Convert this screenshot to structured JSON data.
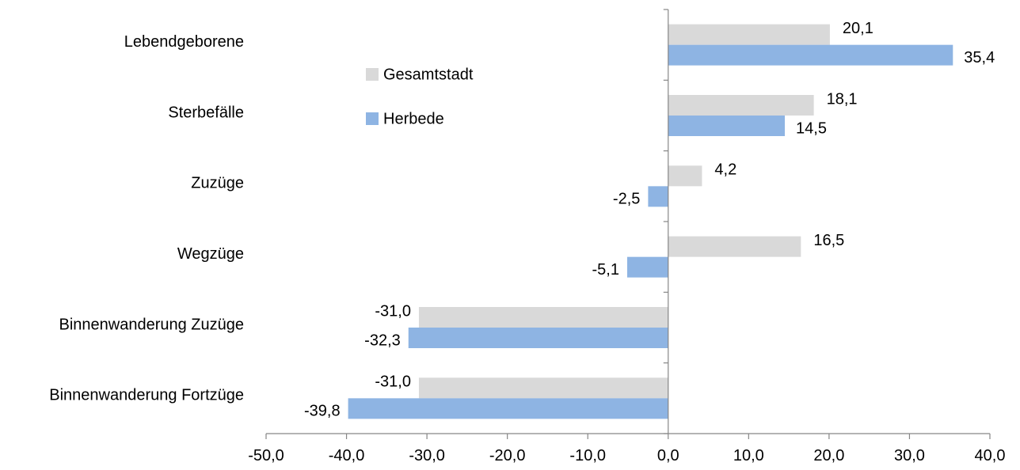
{
  "chart_data": {
    "type": "bar",
    "orientation": "horizontal",
    "categories": [
      "Lebendgeborene",
      "Sterbefälle",
      "Zuzüge",
      "Wegzüge",
      "Binnenwanderung Zuzüge",
      "Binnenwanderung Fortzüge"
    ],
    "series": [
      {
        "name": "Gesamtstadt",
        "color": "#d9d9d9",
        "values": [
          20.1,
          18.1,
          4.2,
          16.5,
          -31.0,
          -31.0
        ],
        "labels": [
          "20,1",
          "18,1",
          "4,2",
          "16,5",
          "-31,0",
          "-31,0"
        ]
      },
      {
        "name": "Herbede",
        "color": "#8eb4e3",
        "values": [
          35.4,
          14.5,
          -2.5,
          -5.1,
          -32.3,
          -39.8
        ],
        "labels": [
          "35,4",
          "14,5",
          "-2,5",
          "-5,1",
          "-32,3",
          "-39,8"
        ]
      }
    ],
    "xlim": [
      -50,
      40
    ],
    "xticks": [
      -50,
      -40,
      -30,
      -20,
      -10,
      0,
      10,
      20,
      30,
      40
    ],
    "xtick_labels": [
      "-50,0",
      "-40,0",
      "-30,0",
      "-20,0",
      "-10,0",
      "0,0",
      "10,0",
      "20,0",
      "30,0",
      "40,0"
    ],
    "title": "",
    "xlabel": "",
    "ylabel": "",
    "grid": false,
    "legend_position": "upper-left-inside"
  }
}
